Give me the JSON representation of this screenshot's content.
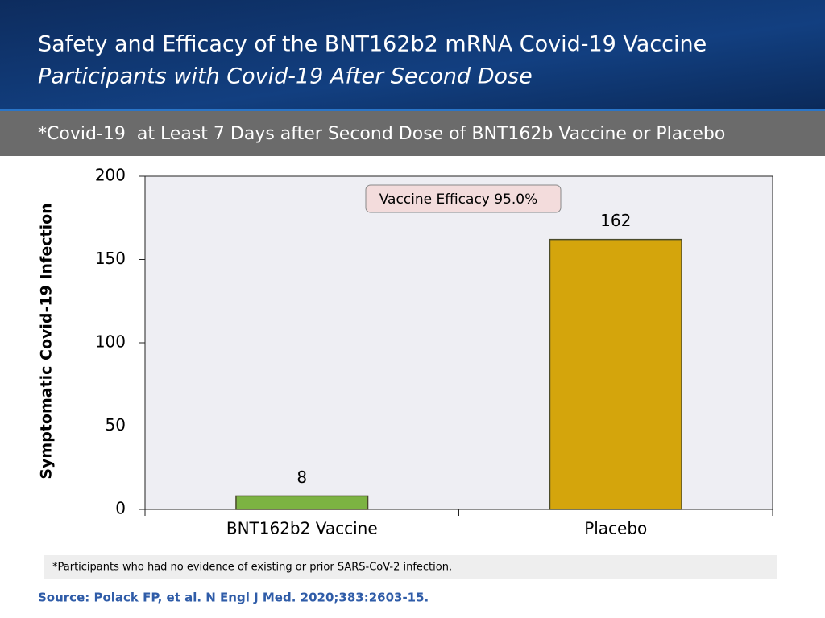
{
  "slide": {
    "title": "Safety and Efficacy of the BNT162b2 mRNA Covid-19 Vaccine",
    "subtitle": "Participants with Covid-19 After Second Dose",
    "banner": "*Covid-19  at Least 7 Days after Second Dose of BNT162b Vaccine or Placebo",
    "footnote": "*Participants who had no evidence of existing or prior SARS-CoV-2 infection.",
    "source": "Source: Polack FP, et al. N Engl J Med. 2020;383:2603-15."
  },
  "chart_data": {
    "type": "bar",
    "y_label": "Symptomatic Covid-19 Infection",
    "annotation": "Vaccine Efficacy 95.0%",
    "categories": [
      "BNT162b2 Vaccine",
      "Placebo"
    ],
    "values": [
      8,
      162
    ],
    "colors": [
      "#7cb342",
      "#d4a50c"
    ],
    "ylim": [
      0,
      200
    ],
    "yticks": [
      0,
      50,
      100,
      150,
      200
    ],
    "grid": false,
    "data_labels": true
  }
}
